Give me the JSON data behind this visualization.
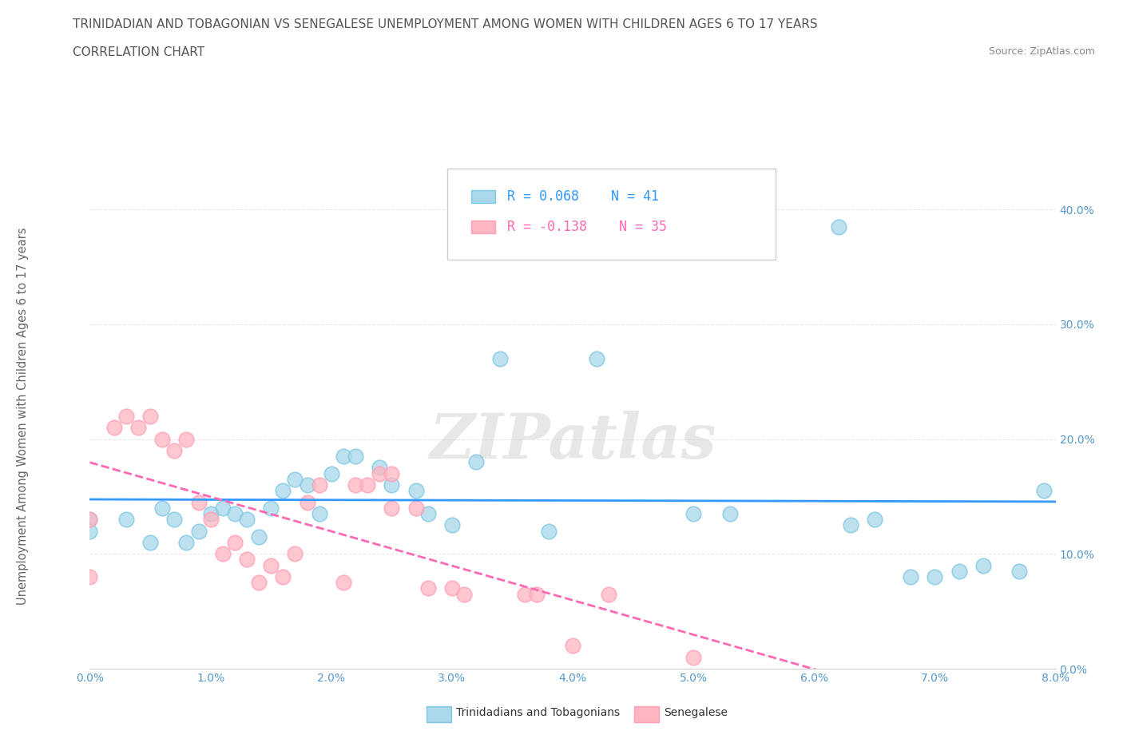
{
  "title_line1": "TRINIDADIAN AND TOBAGONIAN VS SENEGALESE UNEMPLOYMENT AMONG WOMEN WITH CHILDREN AGES 6 TO 17 YEARS",
  "title_line2": "CORRELATION CHART",
  "source": "Source: ZipAtlas.com",
  "xmin": 0.0,
  "xmax": 0.08,
  "ymin": 0.0,
  "ymax": 0.44,
  "ylabel": "Unemployment Among Women with Children Ages 6 to 17 years",
  "legend_blue_label": "Trinidadians and Tobagonians",
  "legend_pink_label": "Senegalese",
  "legend_blue_R": "R = 0.068",
  "legend_blue_N": "N = 41",
  "legend_pink_R": "R = -0.138",
  "legend_pink_N": "N = 35",
  "watermark": "ZIPatlas",
  "blue_scatter_x": [
    0.0,
    0.0,
    0.003,
    0.005,
    0.006,
    0.007,
    0.008,
    0.009,
    0.01,
    0.011,
    0.012,
    0.013,
    0.014,
    0.015,
    0.016,
    0.017,
    0.018,
    0.019,
    0.02,
    0.021,
    0.022,
    0.024,
    0.025,
    0.027,
    0.028,
    0.03,
    0.032,
    0.034,
    0.038,
    0.042,
    0.05,
    0.053,
    0.062,
    0.063,
    0.065,
    0.068,
    0.07,
    0.072,
    0.074,
    0.077,
    0.079
  ],
  "blue_scatter_y": [
    0.13,
    0.12,
    0.13,
    0.11,
    0.14,
    0.13,
    0.11,
    0.12,
    0.135,
    0.14,
    0.135,
    0.13,
    0.115,
    0.14,
    0.155,
    0.165,
    0.16,
    0.135,
    0.17,
    0.185,
    0.185,
    0.175,
    0.16,
    0.155,
    0.135,
    0.125,
    0.18,
    0.27,
    0.12,
    0.27,
    0.135,
    0.135,
    0.385,
    0.125,
    0.13,
    0.08,
    0.08,
    0.085,
    0.09,
    0.085,
    0.155
  ],
  "pink_scatter_x": [
    0.0,
    0.0,
    0.002,
    0.003,
    0.004,
    0.005,
    0.006,
    0.007,
    0.008,
    0.009,
    0.01,
    0.011,
    0.012,
    0.013,
    0.014,
    0.015,
    0.016,
    0.017,
    0.018,
    0.019,
    0.021,
    0.022,
    0.023,
    0.024,
    0.025,
    0.025,
    0.027,
    0.028,
    0.03,
    0.031,
    0.036,
    0.037,
    0.04,
    0.043,
    0.05
  ],
  "pink_scatter_y": [
    0.13,
    0.08,
    0.21,
    0.22,
    0.21,
    0.22,
    0.2,
    0.19,
    0.2,
    0.145,
    0.13,
    0.1,
    0.11,
    0.095,
    0.075,
    0.09,
    0.08,
    0.1,
    0.145,
    0.16,
    0.075,
    0.16,
    0.16,
    0.17,
    0.14,
    0.17,
    0.14,
    0.07,
    0.07,
    0.065,
    0.065,
    0.065,
    0.02,
    0.065,
    0.01
  ],
  "blue_color": "#a8d8ea",
  "pink_color": "#ffb6c1",
  "blue_edge_color": "#7ec8e3",
  "pink_edge_color": "#ff9eb5",
  "blue_line_color": "#3399ff",
  "pink_line_color": "#ff69b4",
  "grid_color": "#e8e8e8",
  "background_color": "#ffffff",
  "title_color": "#555555",
  "axis_tick_color": "#5599cc",
  "ylabel_color": "#666666",
  "watermark_color": "#d0d0d0",
  "source_color": "#888888",
  "legend_text_color": "#333333",
  "legend_R_blue_color": "#3399ff",
  "legend_R_pink_color": "#ff69b4"
}
